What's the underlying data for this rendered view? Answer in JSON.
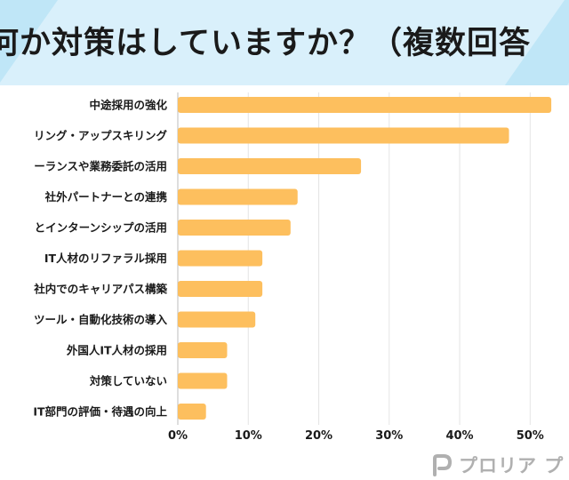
{
  "header": {
    "title": "何か対策はしていますか？（複数回答"
  },
  "chart_data": {
    "type": "bar",
    "orientation": "horizontal",
    "categories": [
      "中途採用の強化",
      "リング・アップスキリング",
      "ーランスや業務委託の活用",
      "社外パートナーとの連携",
      "とインターンシップの活用",
      "IT人材のリファラル採用",
      "社内でのキャリアパス構築",
      "ツール・自動化技術の導入",
      "外国人IT人材の採用",
      "対策していない",
      "IT部門の評価・待遇の向上"
    ],
    "values": [
      53,
      47,
      26,
      17,
      16,
      12,
      12,
      11,
      7,
      7,
      4
    ],
    "xlim": [
      0,
      54
    ],
    "ticks": [
      0,
      10,
      20,
      30,
      40,
      50
    ],
    "tick_labels": [
      "0%",
      "10%",
      "20%",
      "30%",
      "40%",
      "50%"
    ],
    "grid": true,
    "bar_color": "#fdbf5e"
  },
  "branding": {
    "logo_text": "プロリア プ",
    "logo_icon": "p-logo-icon"
  }
}
